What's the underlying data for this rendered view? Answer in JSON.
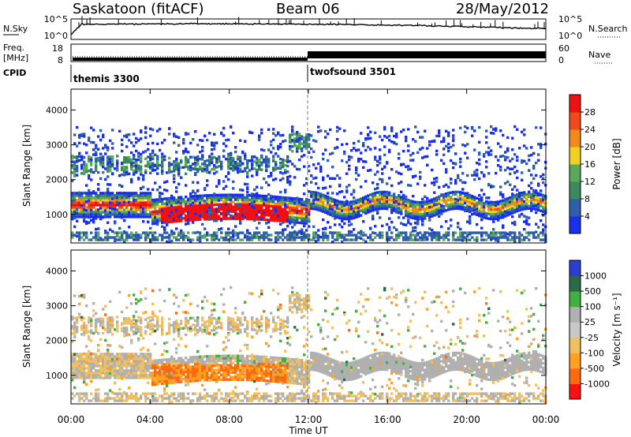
{
  "header": {
    "station": "Saskatoon (fitACF)",
    "beam": "Beam 06",
    "date": "28/May/2012"
  },
  "top_panel": {
    "left_label": "N.Sky",
    "right_label": "N.Search",
    "left_ticks": [
      "10^5",
      "10^0"
    ],
    "right_ticks": [
      "10^5",
      "10^0"
    ]
  },
  "freq_panel": {
    "label_line1": "Freq.",
    "label_line2": "[MHz]",
    "left_ticks": [
      "18",
      "8"
    ],
    "right_ticks": [
      "60",
      "0"
    ],
    "right_label": "Nave"
  },
  "cpid": {
    "label": "CPID",
    "segments": [
      {
        "name": "themis 3300",
        "start_hour": 0,
        "end_hour": 12
      },
      {
        "name": "twofsound 3501",
        "start_hour": 12,
        "end_hour": 24
      }
    ]
  },
  "colors": {
    "power_scale": [
      "#1a2ef0",
      "#2f5fa8",
      "#3a8a5a",
      "#5aa85a",
      "#f0d020",
      "#f08a1a",
      "#f04a1a",
      "#f01010"
    ],
    "velocity_scale": [
      "#ff1010",
      "#ff6a10",
      "#ffa020",
      "#f0c060",
      "#c8c8c8",
      "#b0b0b0",
      "#40b040",
      "#2a6a4a",
      "#2a3fd0"
    ]
  },
  "chart_data": [
    {
      "type": "heatmap",
      "panel": "power",
      "ylabel": "Slant Range [km]",
      "yticks": [
        "1000",
        "2000",
        "3000",
        "4000"
      ],
      "ylim": [
        180,
        4600
      ],
      "colorbar_label": "Power [dB]",
      "colorbar_ticks": [
        "4",
        "8",
        "12",
        "16",
        "20",
        "24",
        "28"
      ],
      "colorbar_range": [
        0,
        30
      ]
    },
    {
      "type": "heatmap",
      "panel": "velocity",
      "ylabel": "Slant Range [km]",
      "yticks": [
        "1000",
        "2000",
        "3000",
        "4000"
      ],
      "ylim": [
        180,
        4600
      ],
      "colorbar_label": "Velocity [m s⁻¹]",
      "colorbar_ticks": [
        "-1000",
        "-500",
        "-100",
        "-25",
        "25",
        "100",
        "500",
        "1000"
      ]
    }
  ],
  "x_axis": {
    "label": "Time UT",
    "ticks": [
      "00:00",
      "04:00",
      "08:00",
      "12:00",
      "16:00",
      "20:00",
      "00:00"
    ]
  }
}
